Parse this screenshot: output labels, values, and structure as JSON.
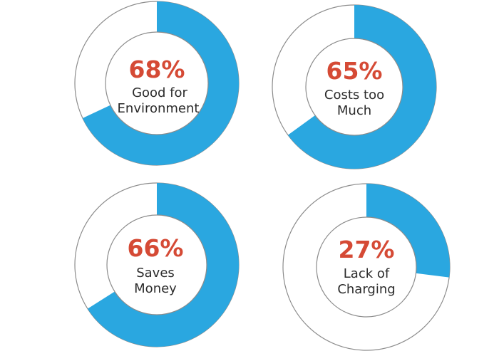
{
  "colors": {
    "fill": "#2aa7e0",
    "track": "#ffffff",
    "outline": "#8c8c8c",
    "percent_text": "#d54a35",
    "label_text": "#2b2b2b"
  },
  "chart_data": [
    {
      "type": "pie",
      "variant": "donut",
      "value": 68,
      "percent_label": "68%",
      "label_lines": [
        "Good for",
        "Environment"
      ]
    },
    {
      "type": "pie",
      "variant": "donut",
      "value": 65,
      "percent_label": "65%",
      "label_lines": [
        "Costs too",
        "Much"
      ]
    },
    {
      "type": "pie",
      "variant": "donut",
      "value": 66,
      "percent_label": "66%",
      "label_lines": [
        "Saves",
        "Money"
      ]
    },
    {
      "type": "pie",
      "variant": "donut",
      "value": 27,
      "percent_label": "27%",
      "label_lines": [
        "Lack of",
        "Charging"
      ]
    }
  ]
}
